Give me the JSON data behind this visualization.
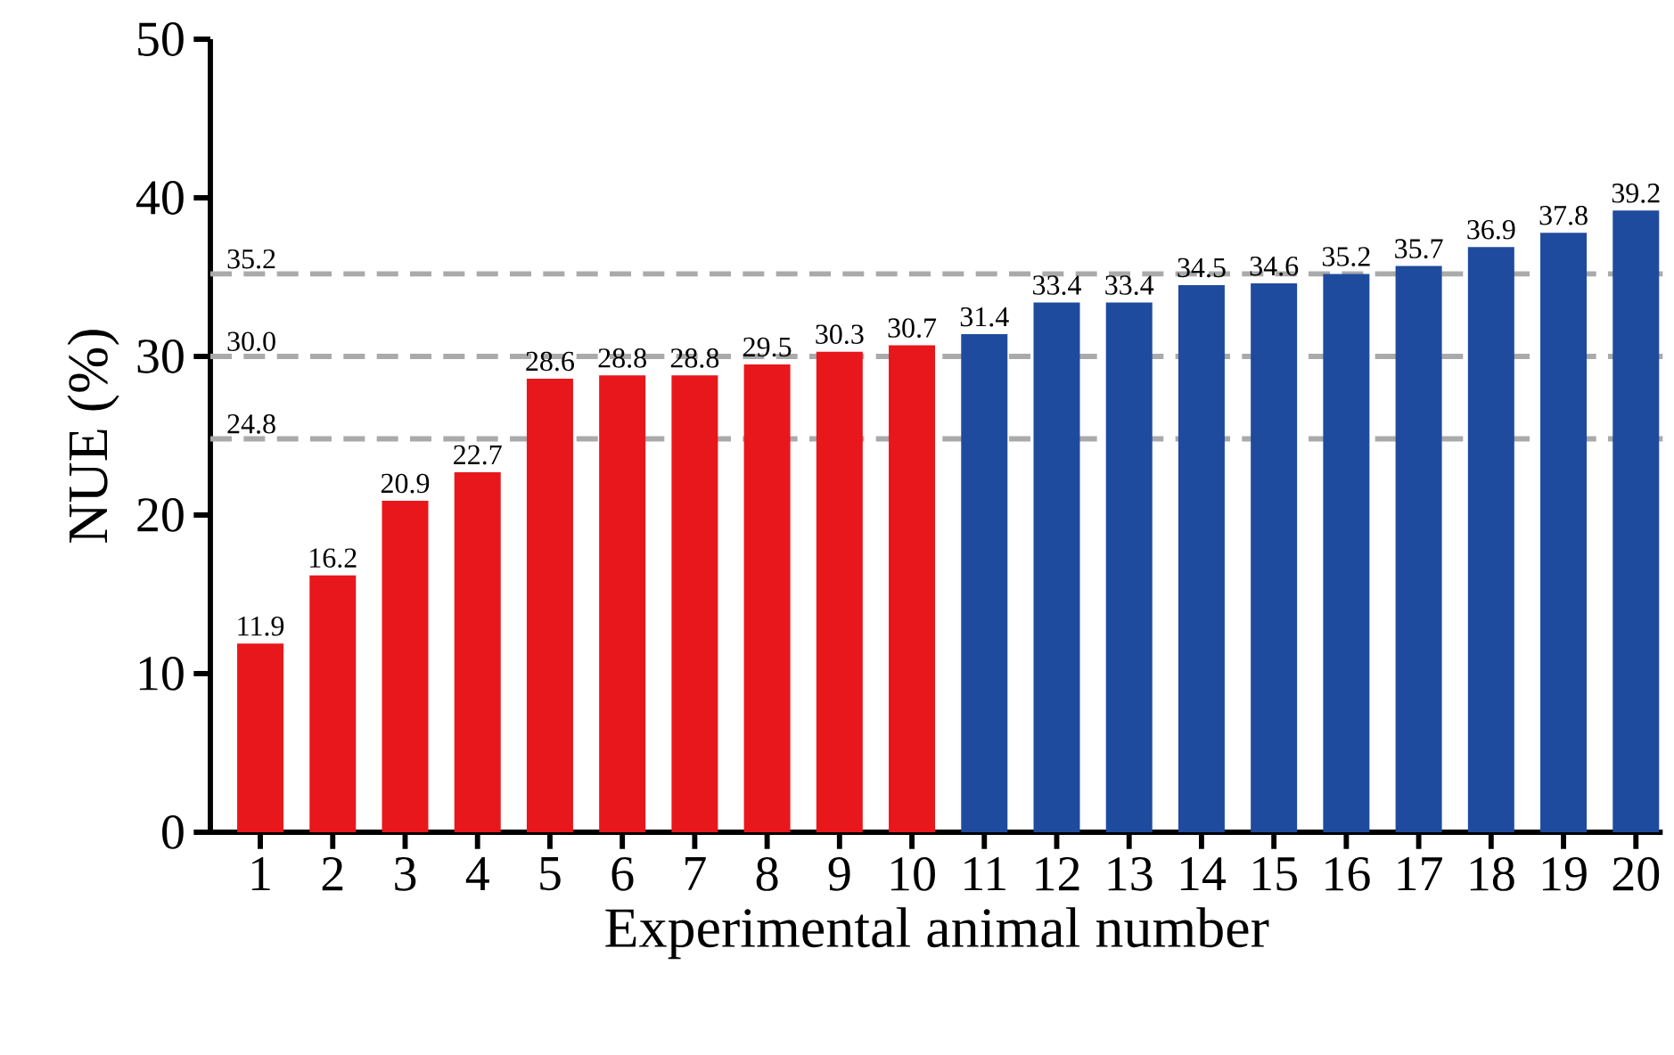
{
  "chart_data": {
    "type": "bar",
    "xlabel": "Experimental animal number",
    "ylabel": "NUE (%)",
    "categories": [
      "1",
      "2",
      "3",
      "4",
      "5",
      "6",
      "7",
      "8",
      "9",
      "10",
      "11",
      "12",
      "13",
      "14",
      "15",
      "16",
      "17",
      "18",
      "19",
      "20"
    ],
    "values": [
      11.9,
      16.2,
      20.9,
      22.7,
      28.6,
      28.8,
      28.8,
      29.5,
      30.3,
      30.7,
      31.4,
      33.4,
      33.4,
      34.5,
      34.6,
      35.2,
      35.7,
      36.9,
      37.8,
      39.2
    ],
    "colors": [
      "#e8171c",
      "#e8171c",
      "#e8171c",
      "#e8171c",
      "#e8171c",
      "#e8171c",
      "#e8171c",
      "#e8171c",
      "#e8171c",
      "#e8171c",
      "#1f4b9e",
      "#1f4b9e",
      "#1f4b9e",
      "#1f4b9e",
      "#1f4b9e",
      "#1f4b9e",
      "#1f4b9e",
      "#1f4b9e",
      "#1f4b9e",
      "#1f4b9e"
    ],
    "ylim": [
      0,
      50
    ],
    "yticks": [
      0,
      10,
      20,
      30,
      40,
      50
    ],
    "data_labels": true,
    "ref_lines": [
      {
        "axis": "y",
        "value": 35.2,
        "label": "35.2",
        "color": "#aaaaaa",
        "line_style": "dashed"
      },
      {
        "axis": "y",
        "value": 30.0,
        "label": "30.0",
        "color": "#aaaaaa",
        "line_style": "dashed"
      },
      {
        "axis": "y",
        "value": 24.8,
        "label": "24.8",
        "color": "#aaaaaa",
        "line_style": "dashed"
      }
    ]
  }
}
